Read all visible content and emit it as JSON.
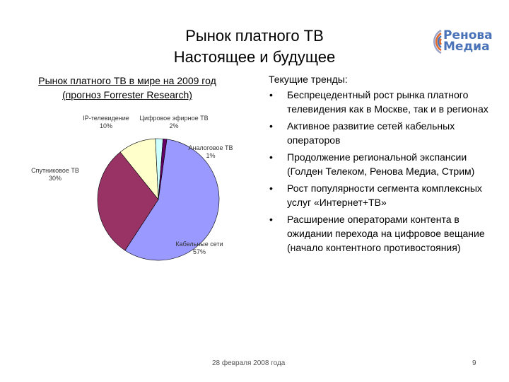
{
  "slide": {
    "title_line1": "Рынок платного ТВ",
    "title_line2": "Настоящее и будущее",
    "footer_date": "28 февраля 2008 года",
    "page_number": "9"
  },
  "logo": {
    "line1": "Ренова",
    "line2": "Медиа",
    "color": "#4a72b8"
  },
  "chart_section": {
    "heading": "Рынок платного ТВ в мире на 2009 год (прогноз Forrester Research)"
  },
  "chart_data": {
    "type": "pie",
    "slices": [
      {
        "label_line1": "Кабельные сети",
        "label_line2": "57%",
        "value": 57,
        "color": "#9999ff"
      },
      {
        "label_line1": "Спутниковое ТВ",
        "label_line2": "30%",
        "value": 30,
        "color": "#993366"
      },
      {
        "label_line1": "IP-телевидение",
        "label_line2": "10%",
        "value": 10,
        "color": "#ffffcc"
      },
      {
        "label_line1": "Цифровое эфирное ТВ",
        "label_line2": "2%",
        "value": 2,
        "color": "#ccffff"
      },
      {
        "label_line1": "Аналоговое ТВ",
        "label_line2": "1%",
        "value": 1,
        "color": "#660066"
      }
    ]
  },
  "trends": {
    "heading": "Текущие тренды:",
    "bullet_symbol": "•",
    "items": [
      "Беспрецедентный рост рынка платного телевидения как в Москве, так и в регионах",
      "Активное развитие сетей кабельных операторов",
      "Продолжение региональной экспансии (Голден Телеком, Ренова Медиа, Стрим)",
      "Рост популярности сегмента комплексных услуг «Интернет+ТВ»",
      "Расширение операторами контента в ожидании перехода на цифровое вещание (начало контентного противостояния)"
    ]
  }
}
